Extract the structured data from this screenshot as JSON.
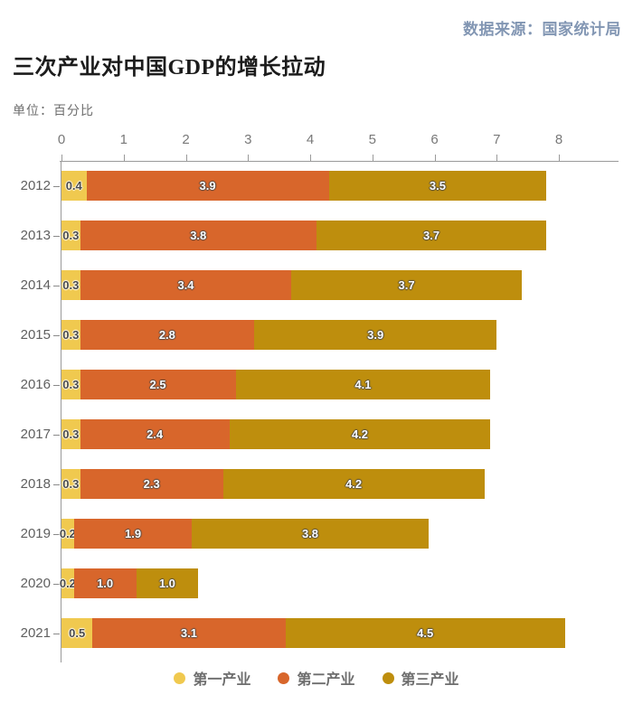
{
  "header": {
    "source": "数据来源：国家统计局",
    "title": "三次产业对中国GDP的增长拉动",
    "unit": "单位：百分比"
  },
  "colors": {
    "primary_industry": "#F0C94F",
    "secondary_industry": "#D8662B",
    "tertiary_industry": "#BE8E0D",
    "source_text": "#8296B3",
    "axis": "#9A9A9A",
    "label_text": "#5F5F5F"
  },
  "chart_data": {
    "type": "bar",
    "orientation": "horizontal-stacked",
    "title": "三次产业对中国GDP的增长拉动",
    "unit_label": "单位：百分比",
    "categories": [
      "2012",
      "2013",
      "2014",
      "2015",
      "2016",
      "2017",
      "2018",
      "2019",
      "2020",
      "2021"
    ],
    "series": [
      {
        "name": "第一产业",
        "color": "#F0C94F",
        "label_style": "dark",
        "values": [
          0.4,
          0.3,
          0.3,
          0.3,
          0.3,
          0.3,
          0.3,
          0.2,
          0.2,
          0.5
        ]
      },
      {
        "name": "第二产业",
        "color": "#D8662B",
        "label_style": "light",
        "values": [
          3.9,
          3.8,
          3.4,
          2.8,
          2.5,
          2.4,
          2.3,
          1.9,
          1.0,
          3.1
        ]
      },
      {
        "name": "第三产业",
        "color": "#BE8E0D",
        "label_style": "light",
        "values": [
          3.5,
          3.7,
          3.7,
          3.9,
          4.1,
          4.2,
          4.2,
          3.8,
          1.0,
          4.5
        ]
      }
    ],
    "xlim": [
      0,
      8
    ],
    "xticks": [
      0,
      1,
      2,
      3,
      4,
      5,
      6,
      7,
      8
    ],
    "grid": false,
    "legend_position": "bottom"
  }
}
